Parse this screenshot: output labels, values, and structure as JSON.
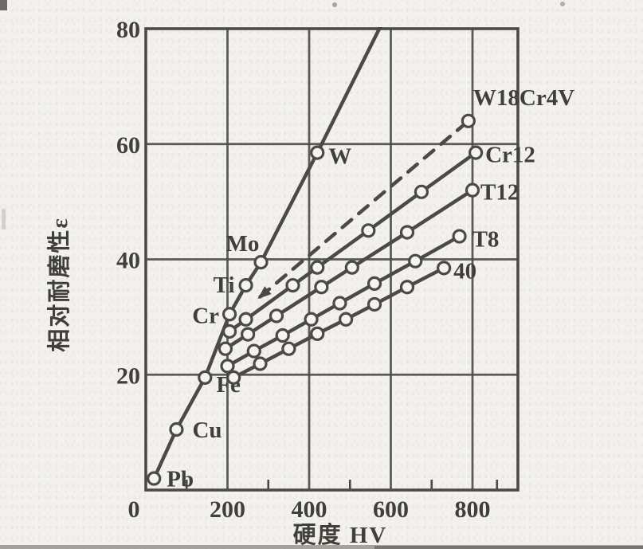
{
  "chart_data": {
    "type": "line",
    "title": "",
    "xlabel": "硬度 HV",
    "ylabel": "相对耐磨性ε",
    "xlim": [
      0,
      911
    ],
    "ylim": [
      0,
      80
    ],
    "x_ticks": [
      0,
      200,
      400,
      600,
      800
    ],
    "x_minor_ticks": [
      100,
      300,
      500,
      700,
      860
    ],
    "y_ticks": [
      20,
      40,
      60,
      80
    ],
    "grid": true,
    "legend_position": "inline-labels-at-line-ends",
    "colors": {
      "ink": "#4b4a46",
      "paper": "#f2f1ed",
      "marker_fill": "#f5f4f0",
      "text": "#403f3a"
    },
    "series": [
      {
        "name": "pure-metals",
        "label": "",
        "style": "solid",
        "markers": "all",
        "points": [
          [
            20,
            2
          ],
          [
            75,
            10.5
          ],
          [
            145,
            19.5
          ],
          [
            205,
            30.5
          ],
          [
            245,
            35.5
          ],
          [
            282,
            39.5
          ],
          [
            420,
            58.5
          ]
        ],
        "point_labels": [
          "Pb",
          "Cu",
          "Fe",
          "Cr",
          "Ti",
          "Mo",
          "W"
        ],
        "point_label_offsets": [
          [
            16,
            10
          ],
          [
            20,
            10
          ],
          [
            14,
            18
          ],
          [
            -13,
            11
          ],
          [
            -14,
            9
          ],
          [
            -44,
            -14
          ],
          [
            14,
            14
          ]
        ],
        "point_label_anchors": [
          "start",
          "start",
          "start",
          "end",
          "end",
          "start",
          "start"
        ],
        "extend_to": [
          579,
          81
        ]
      },
      {
        "name": "W18Cr4V",
        "label": "W18Cr4V",
        "style": "dashed",
        "markers": "last",
        "arrow_start": true,
        "points": [
          [
            280,
            33.5
          ],
          [
            790,
            64
          ]
        ],
        "label_offset": [
          6,
          -20
        ]
      },
      {
        "name": "Cr12",
        "label": "Cr12",
        "style": "solid",
        "markers": "all",
        "points": [
          [
            205,
            27.5
          ],
          [
            245,
            29.6
          ],
          [
            360,
            35.5
          ],
          [
            420,
            38.6
          ],
          [
            545,
            45
          ],
          [
            675,
            51.7
          ],
          [
            808,
            58.5
          ]
        ],
        "label_offset": [
          12,
          12
        ]
      },
      {
        "name": "T12",
        "label": "T12",
        "style": "solid",
        "markers": "all",
        "points": [
          [
            195,
            24.5
          ],
          [
            250,
            27
          ],
          [
            320,
            30.2
          ],
          [
            430,
            35.2
          ],
          [
            505,
            38.6
          ],
          [
            640,
            44.7
          ],
          [
            800,
            52
          ]
        ],
        "label_offset": [
          10,
          12
        ]
      },
      {
        "name": "T8",
        "label": "T8",
        "style": "solid",
        "markers": "all",
        "points": [
          [
            200,
            21.5
          ],
          [
            265,
            24.1
          ],
          [
            335,
            26.8
          ],
          [
            405,
            29.6
          ],
          [
            475,
            32.4
          ],
          [
            560,
            35.8
          ],
          [
            660,
            39.7
          ],
          [
            768,
            44
          ]
        ],
        "label_offset": [
          16,
          13
        ]
      },
      {
        "name": "steel-40",
        "label": "40",
        "style": "solid",
        "markers": "all",
        "points": [
          [
            215,
            19.5
          ],
          [
            280,
            21.9
          ],
          [
            350,
            24.5
          ],
          [
            420,
            27.1
          ],
          [
            490,
            29.6
          ],
          [
            560,
            32.2
          ],
          [
            640,
            35.2
          ],
          [
            730,
            38.5
          ]
        ],
        "label_offset": [
          12,
          13
        ]
      }
    ]
  }
}
